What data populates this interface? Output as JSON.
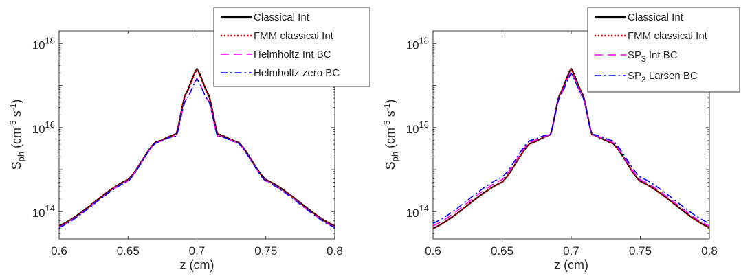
{
  "chart_data": [
    {
      "type": "line",
      "xlabel": "z (cm)",
      "ylabel": {
        "base": "S",
        "sub": "ph",
        "units_open": " (cm",
        "units_exp1": "-3",
        "units_mid": " s",
        "units_exp2": "-1",
        "units_close": ")"
      },
      "xlim": [
        0.6,
        0.8
      ],
      "ylim_log10": [
        13.35,
        18.3
      ],
      "y_scale": "log",
      "xticks": [
        "0.6",
        "0.65",
        "0.7",
        "0.75",
        "0.8"
      ],
      "xtick_values": [
        0.6,
        0.65,
        0.7,
        0.75,
        0.8
      ],
      "yticks": [
        {
          "base": "10",
          "exp": "14",
          "log10": 14
        },
        {
          "base": "10",
          "exp": "16",
          "log10": 16
        },
        {
          "base": "10",
          "exp": "18",
          "log10": 18
        }
      ],
      "grid": false,
      "legend_position": "top-right",
      "profile": {
        "peak_log10": 17.39,
        "tails": [
          [
            0.6,
            13.64
          ],
          [
            0.65,
            14.74
          ],
          [
            0.67,
            15.64
          ],
          [
            0.8,
            13.64
          ]
        ]
      },
      "series": [
        {
          "name": "Classical Int",
          "color": "#000000",
          "style": "solid",
          "width": 2.2,
          "peak_log10": 17.4,
          "low_log10": 13.66,
          "right_low_log10": 13.66
        },
        {
          "name": "FMM classical Int",
          "color": "#e00000",
          "style": "dotted",
          "width": 2.4,
          "peak_log10": 17.38,
          "low_log10": 13.65,
          "right_low_log10": 13.65
        },
        {
          "name": "Helmholtz Int BC",
          "color": "#ff00ff",
          "style": "dashed",
          "width": 1.6,
          "peak_log10": 17.17,
          "low_log10": 13.63,
          "right_low_log10": 13.63
        },
        {
          "name": "Helmholtz zero BC",
          "color": "#0000ff",
          "style": "dashdot",
          "width": 1.6,
          "peak_log10": 17.16,
          "low_log10": 13.62,
          "right_low_log10": 13.62
        }
      ]
    },
    {
      "type": "line",
      "xlabel": "z (cm)",
      "ylabel": {
        "base": "S",
        "sub": "ph",
        "units_open": " (cm",
        "units_exp1": "-3",
        "units_mid": " s",
        "units_exp2": "-1",
        "units_close": ")"
      },
      "xlim": [
        0.6,
        0.8
      ],
      "ylim_log10": [
        13.35,
        18.3
      ],
      "y_scale": "log",
      "xticks": [
        "0.6",
        "0.65",
        "0.7",
        "0.75",
        "0.8"
      ],
      "xtick_values": [
        0.6,
        0.65,
        0.7,
        0.75,
        0.8
      ],
      "yticks": [
        {
          "base": "10",
          "exp": "14",
          "log10": 14
        },
        {
          "base": "10",
          "exp": "16",
          "log10": 16
        },
        {
          "base": "10",
          "exp": "18",
          "log10": 18
        }
      ],
      "grid": false,
      "legend_position": "top-right",
      "profile": {
        "peak_log10": 17.39,
        "tails": [
          [
            0.6,
            13.64
          ],
          [
            0.65,
            14.74
          ],
          [
            0.67,
            15.64
          ],
          [
            0.8,
            13.64
          ]
        ]
      },
      "series": [
        {
          "name": "Classical Int",
          "color": "#000000",
          "style": "solid",
          "width": 2.2,
          "peak_log10": 17.4,
          "low_log10": 13.6,
          "right_low_log10": 13.62
        },
        {
          "name": "FMM classical Int",
          "color": "#e00000",
          "style": "dotted",
          "width": 2.4,
          "peak_log10": 17.38,
          "low_log10": 13.6,
          "right_low_log10": 13.62
        },
        {
          "name_parts": [
            "SP",
            "3",
            " Int BC"
          ],
          "color": "#ff00ff",
          "style": "dashed",
          "width": 1.6,
          "peak_log10": 17.32,
          "low_log10": 13.66,
          "right_low_log10": 13.66
        },
        {
          "name_parts": [
            "SP",
            "3",
            " Larsen BC"
          ],
          "color": "#0000ff",
          "style": "dashdot",
          "width": 1.6,
          "peak_log10": 17.29,
          "low_log10": 13.72,
          "right_low_log10": 13.72
        }
      ]
    }
  ]
}
